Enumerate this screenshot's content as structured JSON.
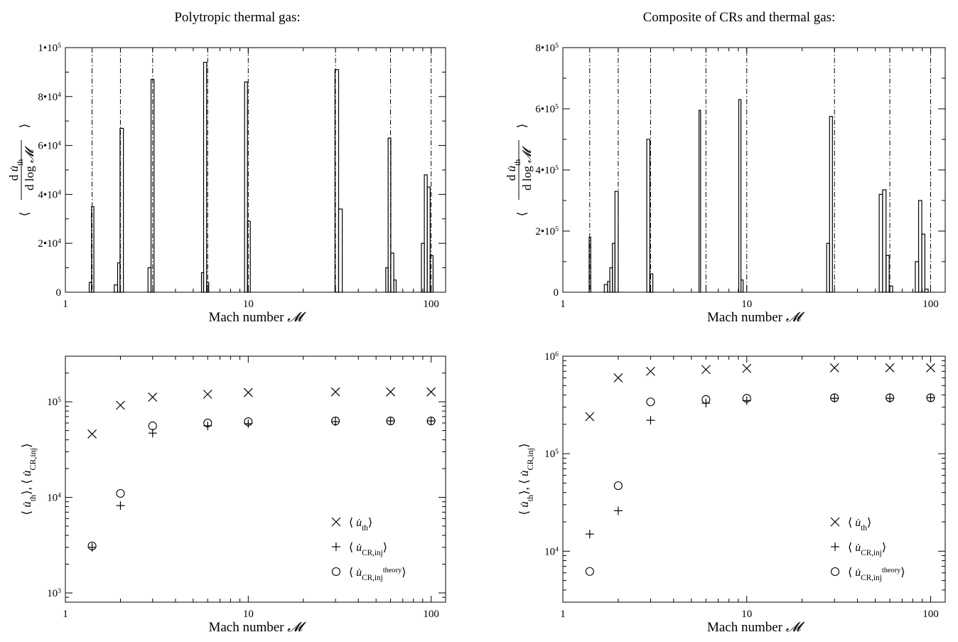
{
  "chart_data": [
    {
      "type": "histogram",
      "title": "Polytropic thermal gas:",
      "xlabel": "Mach number 𝓜",
      "ylabel": "⟨d u̇ₜₕ / d log 𝓜⟩",
      "xscale": "log",
      "xlim": [
        1,
        120
      ],
      "ylim": [
        0,
        100000
      ],
      "x_ticks": [
        {
          "v": 1,
          "label": "1"
        },
        {
          "v": 10,
          "label": "10"
        },
        {
          "v": 100,
          "label": "100"
        }
      ],
      "y_ticks": [
        {
          "v": 0,
          "label": "0"
        },
        {
          "v": 20000,
          "label": "2•10⁴"
        },
        {
          "v": 40000,
          "label": "4•10⁴"
        },
        {
          "v": 60000,
          "label": "6•10⁴"
        },
        {
          "v": 80000,
          "label": "8•10⁴"
        },
        {
          "v": 100000,
          "label": "1•10⁵"
        }
      ],
      "reference_lines_x": [
        1.4,
        2,
        3,
        6,
        10,
        30,
        60,
        100
      ],
      "groups": [
        {
          "mach": 1.4,
          "bins": [
            [
              1.35,
              4000
            ],
            [
              1.39,
              35000
            ]
          ]
        },
        {
          "mach": 2,
          "bins": [
            [
              1.85,
              3000
            ],
            [
              1.93,
              12000
            ],
            [
              1.99,
              67000
            ]
          ]
        },
        {
          "mach": 3,
          "bins": [
            [
              2.83,
              10000
            ],
            [
              2.94,
              87000
            ]
          ]
        },
        {
          "mach": 6,
          "bins": [
            [
              5.55,
              8000
            ],
            [
              5.7,
              94000
            ],
            [
              5.92,
              4000
            ]
          ]
        },
        {
          "mach": 10,
          "bins": [
            [
              9.55,
              86000
            ],
            [
              9.9,
              29000
            ]
          ]
        },
        {
          "mach": 30,
          "bins": [
            [
              29.8,
              91000
            ],
            [
              31.2,
              34000
            ]
          ]
        },
        {
          "mach": 60,
          "bins": [
            [
              56.5,
              10000
            ],
            [
              58.2,
              63000
            ],
            [
              60.2,
              16000
            ],
            [
              62.5,
              5000
            ]
          ]
        },
        {
          "mach": 100,
          "bins": [
            [
              88.5,
              20000
            ],
            [
              91.8,
              48000
            ],
            [
              95.2,
              43000
            ],
            [
              98.8,
              15000
            ]
          ]
        }
      ]
    },
    {
      "type": "histogram",
      "title": "Composite of CRs and thermal gas:",
      "xlabel": "Mach number 𝓜",
      "ylabel": "⟨d u̇ₜₕ / d log 𝓜⟩",
      "xscale": "log",
      "xlim": [
        1,
        120
      ],
      "ylim": [
        0,
        800000
      ],
      "x_ticks": [
        {
          "v": 1,
          "label": "1"
        },
        {
          "v": 10,
          "label": "10"
        },
        {
          "v": 100,
          "label": "100"
        }
      ],
      "y_ticks": [
        {
          "v": 0,
          "label": "0"
        },
        {
          "v": 200000,
          "label": "2•10⁵"
        },
        {
          "v": 400000,
          "label": "4•10⁵"
        },
        {
          "v": 600000,
          "label": "6•10⁵"
        },
        {
          "v": 800000,
          "label": "8•10⁵"
        }
      ],
      "reference_lines_x": [
        1.4,
        2,
        3,
        6,
        10,
        30,
        60,
        100
      ],
      "groups": [
        {
          "mach": 1.4,
          "bins": [
            [
              1.39,
              180000
            ]
          ]
        },
        {
          "mach": 2,
          "bins": [
            [
              1.68,
              25000
            ],
            [
              1.75,
              35000
            ],
            [
              1.8,
              80000
            ],
            [
              1.86,
              160000
            ],
            [
              1.92,
              330000
            ]
          ]
        },
        {
          "mach": 3,
          "bins": [
            [
              2.86,
              500000
            ],
            [
              2.97,
              60000
            ]
          ]
        },
        {
          "mach": 6,
          "bins": [
            [
              5.5,
              595000
            ]
          ]
        },
        {
          "mach": 10,
          "bins": [
            [
              9.05,
              630000
            ],
            [
              9.3,
              40000
            ]
          ]
        },
        {
          "mach": 30,
          "bins": [
            [
              27.2,
              160000
            ],
            [
              28.2,
              575000
            ]
          ]
        },
        {
          "mach": 60,
          "bins": [
            [
              52.5,
              320000
            ],
            [
              54.8,
              335000
            ],
            [
              57.2,
              120000
            ],
            [
              59.5,
              20000
            ]
          ]
        },
        {
          "mach": 100,
          "bins": [
            [
              82.5,
              100000
            ],
            [
              86,
              300000
            ],
            [
              89.5,
              190000
            ],
            [
              93,
              10000
            ]
          ]
        }
      ]
    },
    {
      "type": "scatter",
      "xlabel": "Mach number 𝓜",
      "ylabel": "⟨u̇ₜₕ⟩, ⟨u̇CR,inj⟩",
      "xscale": "log",
      "yscale": "log",
      "xlim": [
        1,
        120
      ],
      "ylim": [
        800,
        300000
      ],
      "x_ticks": [
        {
          "v": 1,
          "label": "1"
        },
        {
          "v": 10,
          "label": "10"
        },
        {
          "v": 100,
          "label": "100"
        }
      ],
      "y_ticks": [
        {
          "v": 1000,
          "base": "10",
          "exp": "3"
        },
        {
          "v": 10000,
          "base": "10",
          "exp": "4"
        },
        {
          "v": 100000,
          "base": "10",
          "exp": "5"
        }
      ],
      "legend_position": "lower-right",
      "series": [
        {
          "name": "⟨u̇ₜₕ⟩",
          "marker": "x",
          "x": [
            1.4,
            2,
            3,
            6,
            10,
            30,
            60,
            100
          ],
          "y": [
            46000,
            92000,
            112000,
            120000,
            125000,
            127000,
            127000,
            127000
          ]
        },
        {
          "name": "⟨u̇CR,inj⟩",
          "marker": "+",
          "x": [
            1.4,
            2,
            3,
            6,
            10,
            30,
            60,
            100
          ],
          "y": [
            3000,
            8200,
            47000,
            56000,
            59000,
            62000,
            63000,
            63000
          ]
        },
        {
          "name": "⟨u̇ CR,inj theory⟩",
          "marker": "o",
          "x": [
            1.4,
            2,
            3,
            6,
            10,
            30,
            60,
            100
          ],
          "y": [
            3100,
            11000,
            56000,
            60000,
            62000,
            63000,
            63000,
            63000
          ]
        }
      ]
    },
    {
      "type": "scatter",
      "xlabel": "Mach number 𝓜",
      "ylabel": "⟨u̇ₜₕ⟩, ⟨u̇CR,inj⟩",
      "xscale": "log",
      "yscale": "log",
      "xlim": [
        1,
        120
      ],
      "ylim": [
        3000,
        1000000
      ],
      "x_ticks": [
        {
          "v": 1,
          "label": "1"
        },
        {
          "v": 10,
          "label": "10"
        },
        {
          "v": 100,
          "label": "100"
        }
      ],
      "y_ticks": [
        {
          "v": 10000,
          "base": "10",
          "exp": "4"
        },
        {
          "v": 100000,
          "base": "10",
          "exp": "5"
        },
        {
          "v": 1000000,
          "base": "10",
          "exp": "6"
        }
      ],
      "legend_position": "lower-right",
      "series": [
        {
          "name": "⟨u̇ₜₕ⟩",
          "marker": "x",
          "x": [
            1.4,
            2,
            3,
            6,
            10,
            30,
            60,
            100
          ],
          "y": [
            240000,
            600000,
            700000,
            730000,
            750000,
            760000,
            760000,
            760000
          ]
        },
        {
          "name": "⟨u̇CR,inj⟩",
          "marker": "+",
          "x": [
            1.4,
            2,
            3,
            6,
            10,
            30,
            60,
            100
          ],
          "y": [
            15000,
            26000,
            220000,
            330000,
            350000,
            370000,
            370000,
            375000
          ]
        },
        {
          "name": "⟨u̇ CR,inj theory⟩",
          "marker": "o",
          "x": [
            1.4,
            2,
            3,
            6,
            10,
            30,
            60,
            100
          ],
          "y": [
            6200,
            47000,
            340000,
            360000,
            370000,
            375000,
            375000,
            375000
          ]
        }
      ]
    }
  ]
}
